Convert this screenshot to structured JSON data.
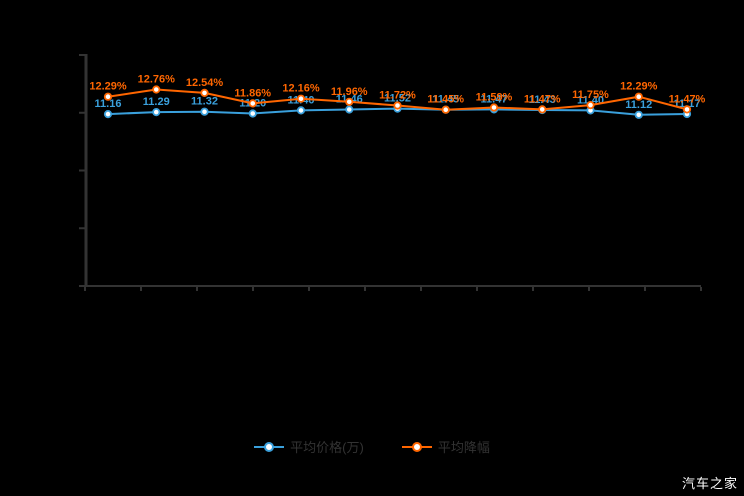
{
  "watermark": {
    "text": "汽车之家"
  },
  "legend": {
    "text_color": "#333333",
    "items": [
      {
        "label": "平均价格(万)",
        "color": "#3aa0dc"
      },
      {
        "label": "平均降幅",
        "color": "#ff6600"
      }
    ]
  },
  "chart_data": {
    "type": "line",
    "title": "",
    "xlabel": "",
    "ylabel": "",
    "background": "#000000",
    "axis_color": "#333333",
    "grid": false,
    "legend_position": "bottom",
    "ylim": [
      0,
      15
    ],
    "y_tick_count": 5,
    "x_tick_count": 12,
    "x_tick_labels": [],
    "series": [
      {
        "name": "平均价格(万)",
        "color": "#3aa0dc",
        "label_suffix": "",
        "values": [
          11.16,
          11.29,
          11.32,
          11.2,
          11.4,
          11.46,
          11.52,
          11.45,
          11.47,
          11.43,
          11.4,
          11.12,
          11.17
        ]
      },
      {
        "name": "平均降幅",
        "color": "#ff6600",
        "label_suffix": "%",
        "values": [
          12.29,
          12.76,
          12.54,
          11.86,
          12.16,
          11.96,
          11.72,
          11.45,
          11.59,
          11.47,
          11.75,
          12.29,
          11.47
        ]
      }
    ]
  }
}
